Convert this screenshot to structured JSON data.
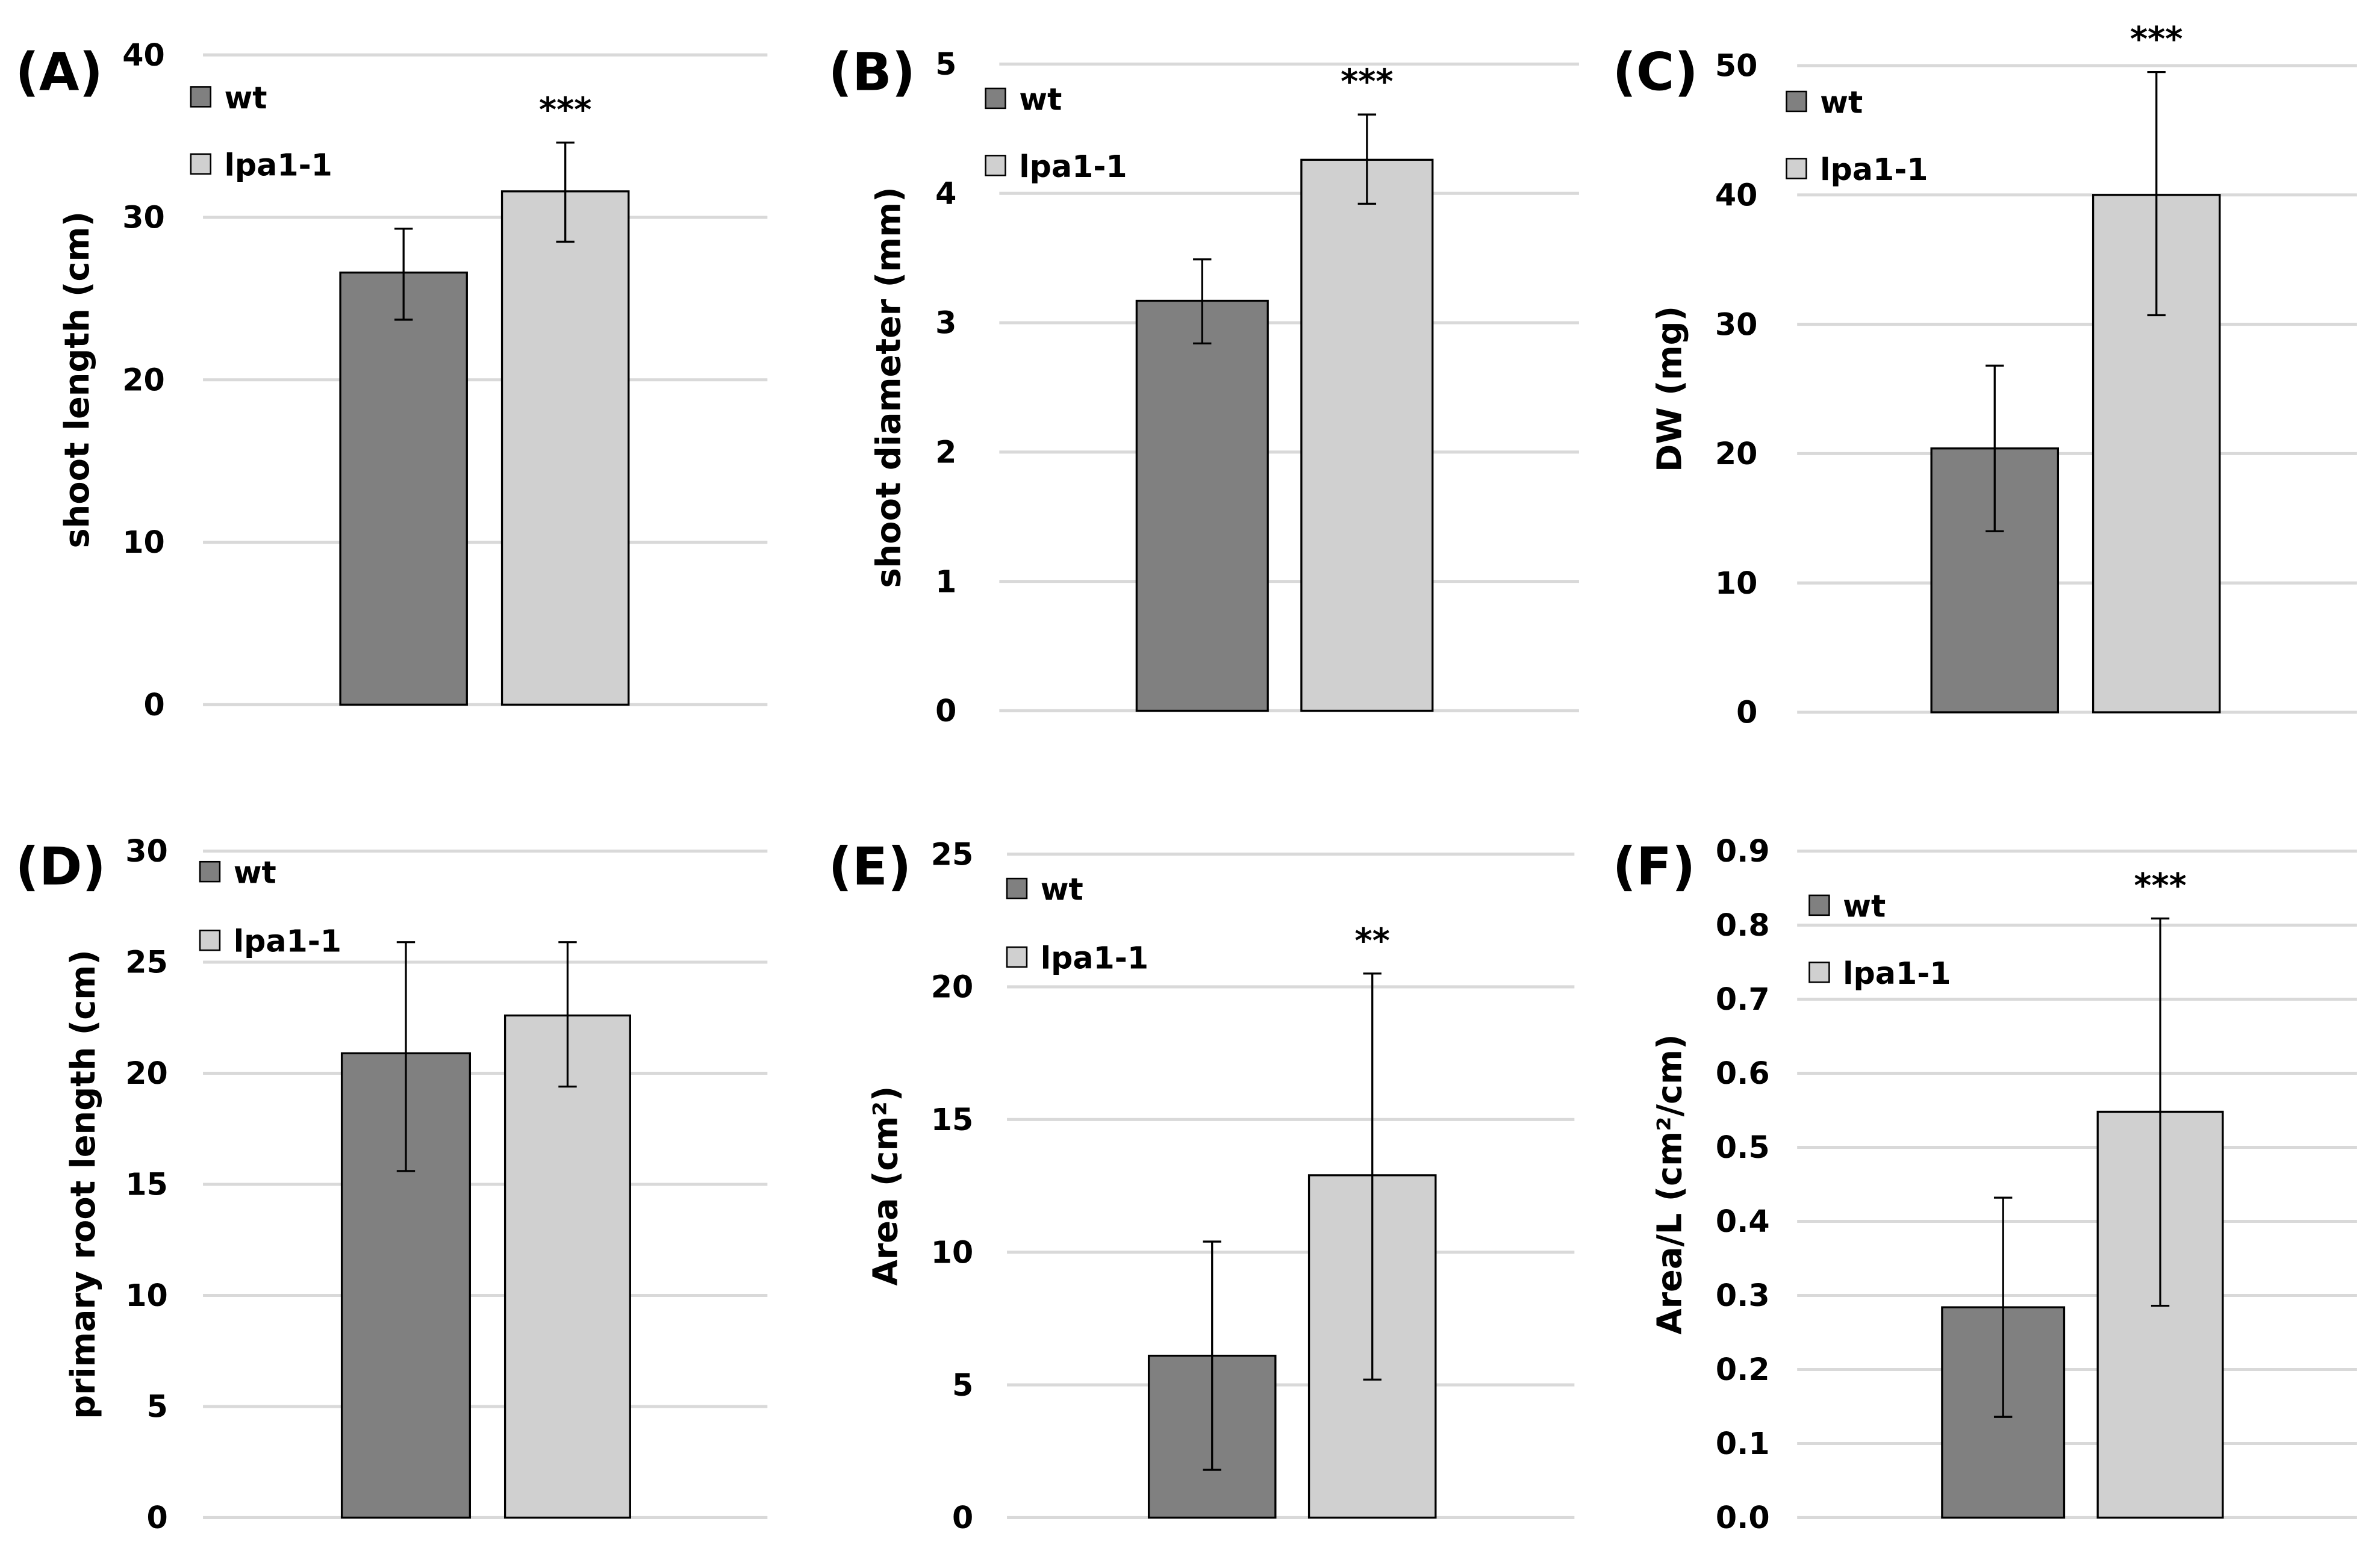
{
  "colors": {
    "wt": "#808080",
    "lpa1-1": "#d0d0d0",
    "grid": "#d9d9d9"
  },
  "chart_data": [
    {
      "type": "bar",
      "panel": "(A)",
      "ylabel": "shoot length (cm)",
      "ylim": [
        0,
        40
      ],
      "yticks": [
        "0",
        "10",
        "20",
        "30",
        "40"
      ],
      "legend": [
        "wt",
        "lpa1-1"
      ],
      "legend_position": "top-left",
      "series": [
        {
          "name": "wt",
          "value": 26.6,
          "err_low": 23.7,
          "err_high": 29.3
        },
        {
          "name": "lpa1-1",
          "value": 31.6,
          "err_low": 28.5,
          "err_high": 34.6
        }
      ],
      "annotation": "***"
    },
    {
      "type": "bar",
      "panel": "(B)",
      "ylabel": "shoot diameter (mm)",
      "ylim": [
        0,
        5
      ],
      "yticks": [
        "0",
        "1",
        "2",
        "3",
        "4",
        "5"
      ],
      "legend": [
        "wt",
        "lpa1-1"
      ],
      "legend_position": "top-left",
      "series": [
        {
          "name": "wt",
          "value": 3.17,
          "err_low": 2.84,
          "err_high": 3.49
        },
        {
          "name": "lpa1-1",
          "value": 4.26,
          "err_low": 3.92,
          "err_high": 4.61
        }
      ],
      "annotation": "***"
    },
    {
      "type": "bar",
      "panel": "(C)",
      "ylabel": "DW (mg)",
      "ylim": [
        0,
        50
      ],
      "yticks": [
        "0",
        "10",
        "20",
        "30",
        "40",
        "50"
      ],
      "legend": [
        "wt",
        "lpa1-1"
      ],
      "legend_position": "top-left",
      "series": [
        {
          "name": "wt",
          "value": 20.4,
          "err_low": 14.0,
          "err_high": 26.8
        },
        {
          "name": "lpa1-1",
          "value": 40.0,
          "err_low": 30.7,
          "err_high": 49.5
        }
      ],
      "annotation": "***"
    },
    {
      "type": "bar",
      "panel": "(D)",
      "ylabel": "primary root length (cm)",
      "ylim": [
        0,
        30
      ],
      "yticks": [
        "0",
        "5",
        "10",
        "15",
        "20",
        "25",
        "30"
      ],
      "legend": [
        "wt",
        "lpa1-1"
      ],
      "legend_position": "top-left",
      "series": [
        {
          "name": "wt",
          "value": 20.9,
          "err_low": 15.6,
          "err_high": 25.9
        },
        {
          "name": "lpa1-1",
          "value": 22.6,
          "err_low": 19.4,
          "err_high": 25.9
        }
      ],
      "annotation": ""
    },
    {
      "type": "bar",
      "panel": "(E)",
      "ylabel": "Area (cm²)",
      "ylim": [
        0,
        25
      ],
      "yticks": [
        "0",
        "5",
        "10",
        "15",
        "20",
        "25"
      ],
      "legend": [
        "wt",
        "lpa1-1"
      ],
      "legend_position": "top-left",
      "series": [
        {
          "name": "wt",
          "value": 6.1,
          "err_low": 1.8,
          "err_high": 10.4
        },
        {
          "name": "lpa1-1",
          "value": 12.9,
          "err_low": 5.2,
          "err_high": 20.5
        }
      ],
      "annotation": "**"
    },
    {
      "type": "bar",
      "panel": "(F)",
      "ylabel": "Area/L (cm²/cm)",
      "ylim": [
        0,
        0.9
      ],
      "yticks": [
        "0.0",
        "0.1",
        "0.2",
        "0.3",
        "0.4",
        "0.5",
        "0.6",
        "0.7",
        "0.8",
        "0.9"
      ],
      "legend": [
        "wt",
        "lpa1-1"
      ],
      "legend_position": "top-left",
      "series": [
        {
          "name": "wt",
          "value": 0.284,
          "err_low": 0.136,
          "err_high": 0.432
        },
        {
          "name": "lpa1-1",
          "value": 0.548,
          "err_low": 0.286,
          "err_high": 0.809
        }
      ],
      "annotation": "***"
    }
  ]
}
